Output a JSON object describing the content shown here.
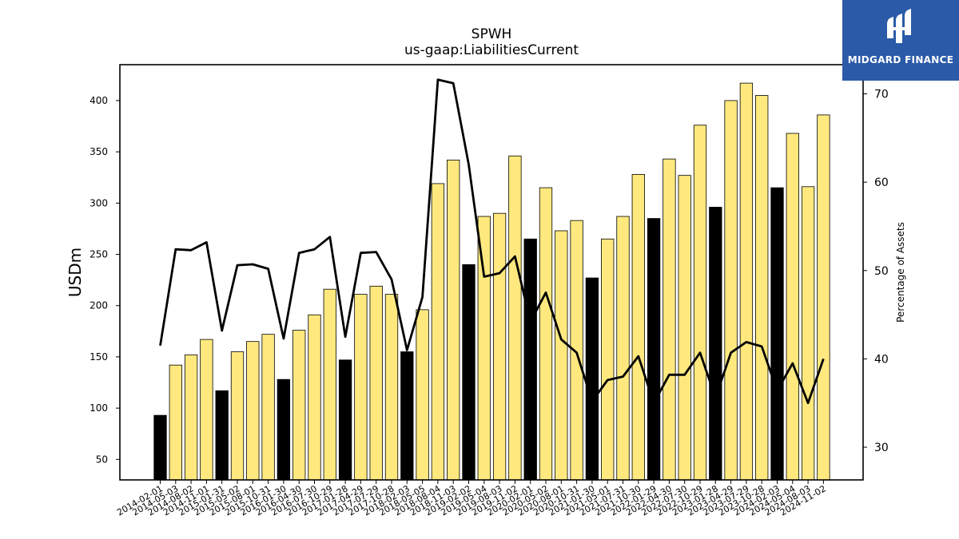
{
  "chart_data": {
    "type": "bar",
    "title": "SPWH",
    "subtitle": "us-gaap:LiabilitiesCurrent",
    "ylabel": "USDm",
    "y2label": "Percentage of Assets",
    "ylim": [
      30,
      435
    ],
    "y2lim": [
      26.3,
      73.3
    ],
    "yticks": [
      50,
      100,
      150,
      200,
      250,
      300,
      350,
      400
    ],
    "y2ticks": [
      30,
      40,
      50,
      60,
      70
    ],
    "categories": [
      "2014-02-01",
      "2014-05-03",
      "2014-08-02",
      "2014-11-01",
      "2015-01-31",
      "2015-05-02",
      "2015-08-01",
      "2015-10-31",
      "2016-01-30",
      "2016-04-30",
      "2016-07-30",
      "2016-10-29",
      "2017-01-28",
      "2017-04-29",
      "2017-07-29",
      "2017-10-28",
      "2018-02-03",
      "2018-05-05",
      "2018-08-04",
      "2018-11-03",
      "2019-02-02",
      "2019-05-04",
      "2019-08-03",
      "2019-11-02",
      "2020-02-01",
      "2020-05-02",
      "2020-08-01",
      "2020-10-31",
      "2021-01-30",
      "2021-05-01",
      "2021-07-31",
      "2021-10-30",
      "2022-01-29",
      "2022-04-30",
      "2022-07-30",
      "2022-10-29",
      "2023-01-28",
      "2023-04-29",
      "2023-07-29",
      "2023-10-28",
      "2024-02-03",
      "2024-05-04",
      "2024-08-03",
      "2024-11-02"
    ],
    "series": [
      {
        "type": "bar",
        "values": [
          93,
          142,
          152,
          167,
          117,
          155,
          165,
          172,
          128,
          176,
          191,
          216,
          147,
          211,
          219,
          211,
          155,
          196,
          319,
          342,
          240,
          287,
          290,
          346,
          265,
          315,
          273,
          283,
          227,
          265,
          287,
          328,
          285,
          343,
          327,
          376,
          296,
          400,
          417,
          405,
          315,
          368,
          316,
          386
        ],
        "highlight": [
          true,
          false,
          false,
          false,
          true,
          false,
          false,
          false,
          true,
          false,
          false,
          false,
          true,
          false,
          false,
          false,
          true,
          false,
          false,
          false,
          true,
          false,
          false,
          false,
          true,
          false,
          false,
          false,
          true,
          false,
          false,
          false,
          true,
          false,
          false,
          false,
          true,
          false,
          false,
          false,
          true,
          false,
          false,
          false
        ]
      },
      {
        "type": "line",
        "axis": "right",
        "values": [
          41.5,
          52.4,
          52.3,
          53.2,
          43.2,
          50.6,
          50.7,
          50.2,
          42.3,
          52.0,
          52.4,
          53.8,
          42.5,
          52.0,
          52.1,
          49.0,
          41.0,
          47.0,
          71.6,
          71.2,
          62.0,
          49.3,
          49.7,
          51.6,
          44.2,
          47.5,
          42.2,
          40.7,
          35.2,
          37.6,
          38.0,
          40.3,
          35.0,
          38.2,
          38.2,
          40.7,
          35.6,
          40.7,
          41.9,
          41.4,
          36.4,
          39.5,
          35.0,
          40.0
        ]
      }
    ],
    "colors": {
      "bar": "#ffe97f",
      "bar_highlight": "#000000",
      "bar_edge": "#000000",
      "line": "#000000"
    }
  },
  "logo": {
    "text": "MIDGARD FINANCE",
    "background": "#2b5aa8"
  }
}
